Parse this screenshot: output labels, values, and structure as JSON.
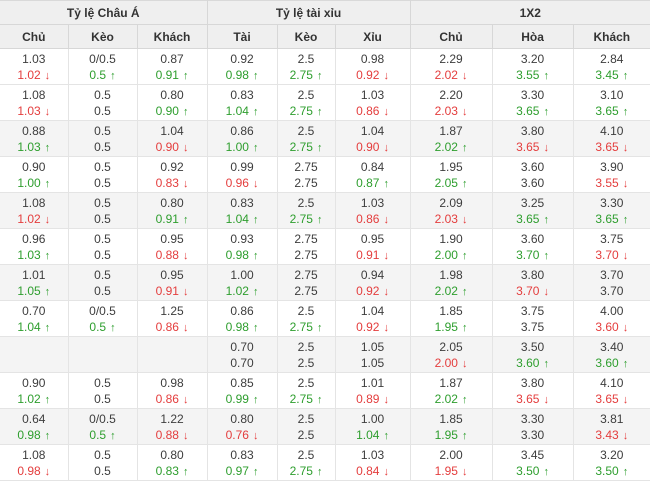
{
  "table": {
    "groups": [
      {
        "label": "Tỷ lệ Châu Á",
        "columns": [
          "Chủ",
          "Kèo",
          "Khách"
        ]
      },
      {
        "label": "Tỷ lệ tài xỉu",
        "columns": [
          "Tài",
          "Kèo",
          "Xỉu"
        ]
      },
      {
        "label": "1X2",
        "columns": [
          "Chủ",
          "Hòa",
          "Khách"
        ]
      }
    ],
    "colors": {
      "up": "#2e9e2e",
      "down": "#e43d3d",
      "header_bg": "#efefef",
      "shaded_row_bg": "#f4f4f4"
    },
    "icons": {
      "up": "↑",
      "down": "↓"
    },
    "rows": [
      {
        "cells": [
          {
            "old": "1.03",
            "new": "1.02",
            "dir": "down"
          },
          {
            "old": "0/0.5",
            "new": "0.5",
            "dir": "up"
          },
          {
            "old": "0.87",
            "new": "0.91",
            "dir": "up"
          },
          {
            "old": "0.92",
            "new": "0.98",
            "dir": "up"
          },
          {
            "old": "2.5",
            "new": "2.75",
            "dir": "up"
          },
          {
            "old": "0.98",
            "new": "0.92",
            "dir": "down"
          },
          {
            "old": "2.29",
            "new": "2.02",
            "dir": "down"
          },
          {
            "old": "3.20",
            "new": "3.55",
            "dir": "up"
          },
          {
            "old": "2.84",
            "new": "3.45",
            "dir": "up"
          }
        ]
      },
      {
        "cells": [
          {
            "old": "1.08",
            "new": "1.03",
            "dir": "down"
          },
          {
            "old": "0.5",
            "new": "0.5",
            "dir": null
          },
          {
            "old": "0.80",
            "new": "0.90",
            "dir": "up"
          },
          {
            "old": "0.83",
            "new": "1.04",
            "dir": "up"
          },
          {
            "old": "2.5",
            "new": "2.75",
            "dir": "up"
          },
          {
            "old": "1.03",
            "new": "0.86",
            "dir": "down"
          },
          {
            "old": "2.20",
            "new": "2.03",
            "dir": "down"
          },
          {
            "old": "3.30",
            "new": "3.65",
            "dir": "up"
          },
          {
            "old": "3.10",
            "new": "3.65",
            "dir": "up"
          }
        ]
      },
      {
        "cells": [
          {
            "old": "0.88",
            "new": "1.03",
            "dir": "up"
          },
          {
            "old": "0.5",
            "new": "0.5",
            "dir": null
          },
          {
            "old": "1.04",
            "new": "0.90",
            "dir": "down"
          },
          {
            "old": "0.86",
            "new": "1.00",
            "dir": "up"
          },
          {
            "old": "2.5",
            "new": "2.75",
            "dir": "up"
          },
          {
            "old": "1.04",
            "new": "0.90",
            "dir": "down"
          },
          {
            "old": "1.87",
            "new": "2.02",
            "dir": "up"
          },
          {
            "old": "3.80",
            "new": "3.65",
            "dir": "down"
          },
          {
            "old": "4.10",
            "new": "3.65",
            "dir": "down"
          }
        ]
      },
      {
        "cells": [
          {
            "old": "0.90",
            "new": "1.00",
            "dir": "up"
          },
          {
            "old": "0.5",
            "new": "0.5",
            "dir": null
          },
          {
            "old": "0.92",
            "new": "0.83",
            "dir": "down"
          },
          {
            "old": "0.99",
            "new": "0.96",
            "dir": "down"
          },
          {
            "old": "2.75",
            "new": "2.75",
            "dir": null
          },
          {
            "old": "0.84",
            "new": "0.87",
            "dir": "up"
          },
          {
            "old": "1.95",
            "new": "2.05",
            "dir": "up"
          },
          {
            "old": "3.60",
            "new": "3.60",
            "dir": null
          },
          {
            "old": "3.90",
            "new": "3.55",
            "dir": "down"
          }
        ]
      },
      {
        "cells": [
          {
            "old": "1.08",
            "new": "1.02",
            "dir": "down"
          },
          {
            "old": "0.5",
            "new": "0.5",
            "dir": null
          },
          {
            "old": "0.80",
            "new": "0.91",
            "dir": "up"
          },
          {
            "old": "0.83",
            "new": "1.04",
            "dir": "up"
          },
          {
            "old": "2.5",
            "new": "2.75",
            "dir": "up"
          },
          {
            "old": "1.03",
            "new": "0.86",
            "dir": "down"
          },
          {
            "old": "2.09",
            "new": "2.03",
            "dir": "down"
          },
          {
            "old": "3.25",
            "new": "3.65",
            "dir": "up"
          },
          {
            "old": "3.30",
            "new": "3.65",
            "dir": "up"
          }
        ]
      },
      {
        "cells": [
          {
            "old": "0.96",
            "new": "1.03",
            "dir": "up"
          },
          {
            "old": "0.5",
            "new": "0.5",
            "dir": null
          },
          {
            "old": "0.95",
            "new": "0.88",
            "dir": "down"
          },
          {
            "old": "0.93",
            "new": "0.98",
            "dir": "up"
          },
          {
            "old": "2.75",
            "new": "2.75",
            "dir": null
          },
          {
            "old": "0.95",
            "new": "0.91",
            "dir": "down"
          },
          {
            "old": "1.90",
            "new": "2.00",
            "dir": "up"
          },
          {
            "old": "3.60",
            "new": "3.70",
            "dir": "up"
          },
          {
            "old": "3.75",
            "new": "3.70",
            "dir": "down"
          }
        ]
      },
      {
        "cells": [
          {
            "old": "1.01",
            "new": "1.05",
            "dir": "up"
          },
          {
            "old": "0.5",
            "new": "0.5",
            "dir": null
          },
          {
            "old": "0.95",
            "new": "0.91",
            "dir": "down"
          },
          {
            "old": "1.00",
            "new": "1.02",
            "dir": "up"
          },
          {
            "old": "2.75",
            "new": "2.75",
            "dir": null
          },
          {
            "old": "0.94",
            "new": "0.92",
            "dir": "down"
          },
          {
            "old": "1.98",
            "new": "2.02",
            "dir": "up"
          },
          {
            "old": "3.80",
            "new": "3.70",
            "dir": "down"
          },
          {
            "old": "3.70",
            "new": "3.70",
            "dir": null
          }
        ]
      },
      {
        "cells": [
          {
            "old": "0.70",
            "new": "1.04",
            "dir": "up"
          },
          {
            "old": "0/0.5",
            "new": "0.5",
            "dir": "up"
          },
          {
            "old": "1.25",
            "new": "0.86",
            "dir": "down"
          },
          {
            "old": "0.86",
            "new": "0.98",
            "dir": "up"
          },
          {
            "old": "2.5",
            "new": "2.75",
            "dir": "up"
          },
          {
            "old": "1.04",
            "new": "0.92",
            "dir": "down"
          },
          {
            "old": "1.85",
            "new": "1.95",
            "dir": "up"
          },
          {
            "old": "3.75",
            "new": "3.75",
            "dir": null
          },
          {
            "old": "4.00",
            "new": "3.60",
            "dir": "down"
          }
        ]
      },
      {
        "cells": [
          {
            "old": "",
            "new": "",
            "dir": null
          },
          {
            "old": "",
            "new": "",
            "dir": null
          },
          {
            "old": "",
            "new": "",
            "dir": null
          },
          {
            "old": "0.70",
            "new": "0.70",
            "dir": null
          },
          {
            "old": "2.5",
            "new": "2.5",
            "dir": null
          },
          {
            "old": "1.05",
            "new": "1.05",
            "dir": null
          },
          {
            "old": "2.05",
            "new": "2.00",
            "dir": "down"
          },
          {
            "old": "3.50",
            "new": "3.60",
            "dir": "up"
          },
          {
            "old": "3.40",
            "new": "3.60",
            "dir": "up"
          }
        ]
      },
      {
        "cells": [
          {
            "old": "0.90",
            "new": "1.02",
            "dir": "up"
          },
          {
            "old": "0.5",
            "new": "0.5",
            "dir": null
          },
          {
            "old": "0.98",
            "new": "0.86",
            "dir": "down"
          },
          {
            "old": "0.85",
            "new": "0.99",
            "dir": "up"
          },
          {
            "old": "2.5",
            "new": "2.75",
            "dir": "up"
          },
          {
            "old": "1.01",
            "new": "0.89",
            "dir": "down"
          },
          {
            "old": "1.87",
            "new": "2.02",
            "dir": "up"
          },
          {
            "old": "3.80",
            "new": "3.65",
            "dir": "down"
          },
          {
            "old": "4.10",
            "new": "3.65",
            "dir": "down"
          }
        ]
      },
      {
        "cells": [
          {
            "old": "0.64",
            "new": "0.98",
            "dir": "up"
          },
          {
            "old": "0/0.5",
            "new": "0.5",
            "dir": "up"
          },
          {
            "old": "1.22",
            "new": "0.88",
            "dir": "down"
          },
          {
            "old": "0.80",
            "new": "0.76",
            "dir": "down"
          },
          {
            "old": "2.5",
            "new": "2.5",
            "dir": null
          },
          {
            "old": "1.00",
            "new": "1.04",
            "dir": "up"
          },
          {
            "old": "1.85",
            "new": "1.95",
            "dir": "up"
          },
          {
            "old": "3.30",
            "new": "3.30",
            "dir": null
          },
          {
            "old": "3.81",
            "new": "3.43",
            "dir": "down"
          }
        ]
      },
      {
        "cells": [
          {
            "old": "1.08",
            "new": "0.98",
            "dir": "down"
          },
          {
            "old": "0.5",
            "new": "0.5",
            "dir": null
          },
          {
            "old": "0.80",
            "new": "0.83",
            "dir": "up"
          },
          {
            "old": "0.83",
            "new": "0.97",
            "dir": "up"
          },
          {
            "old": "2.5",
            "new": "2.75",
            "dir": "up"
          },
          {
            "old": "1.03",
            "new": "0.84",
            "dir": "down"
          },
          {
            "old": "2.00",
            "new": "1.95",
            "dir": "down"
          },
          {
            "old": "3.45",
            "new": "3.50",
            "dir": "up"
          },
          {
            "old": "3.20",
            "new": "3.50",
            "dir": "up"
          }
        ]
      }
    ]
  }
}
